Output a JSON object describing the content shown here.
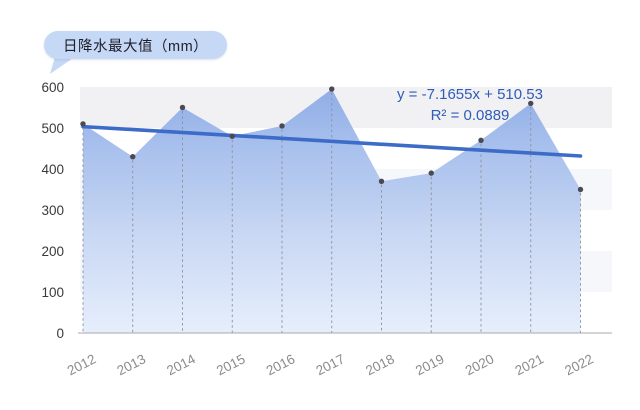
{
  "title_bubble": {
    "label": "日降水最大值（mm）"
  },
  "annotation": {
    "equation": "y = -7.1655x + 510.53",
    "r_squared": "R² = 0.0889"
  },
  "chart_data": {
    "type": "area",
    "title": "日降水最大值（mm）",
    "categories": [
      "2012",
      "2013",
      "2014",
      "2015",
      "2016",
      "2017",
      "2018",
      "2019",
      "2020",
      "2021",
      "2022"
    ],
    "series": [
      {
        "name": "日降水最大值（mm）",
        "values": [
          510,
          430,
          550,
          480,
          505,
          595,
          370,
          390,
          470,
          560,
          350
        ]
      }
    ],
    "ylim": [
      0,
      600
    ],
    "y_ticks": [
      0,
      100,
      200,
      300,
      400,
      500,
      600
    ],
    "xlabel": "",
    "ylabel": "",
    "legend_position": "none",
    "grid": "horizontal-bands-every-100",
    "markers": "dot-with-dashed-dropline",
    "trendline": {
      "slope": -7.1655,
      "intercept": 510.53,
      "equation": "y = -7.1655x + 510.53",
      "r_squared": 0.0889
    }
  },
  "colors": {
    "bubble_fill": "#c5d8f5",
    "title_text": "#1e1e2c",
    "equation_text": "#2e5cb8",
    "area_top": "#88a8e6",
    "area_mid1": "#a5beec",
    "area_mid2": "#c6d6f3",
    "area_bottom": "#e4edfb",
    "trend_line": "#3d6cc8",
    "dot": "#4a4a52",
    "dropline": "#90909a",
    "band_gray": "#f1f1f3",
    "band_faint": "#f6f7fa",
    "band_white": "#ffffff",
    "axis_line": "#a8a8ae",
    "y_tick_label": "#3a3a3a",
    "x_tick_label": "#8c8c8c"
  }
}
